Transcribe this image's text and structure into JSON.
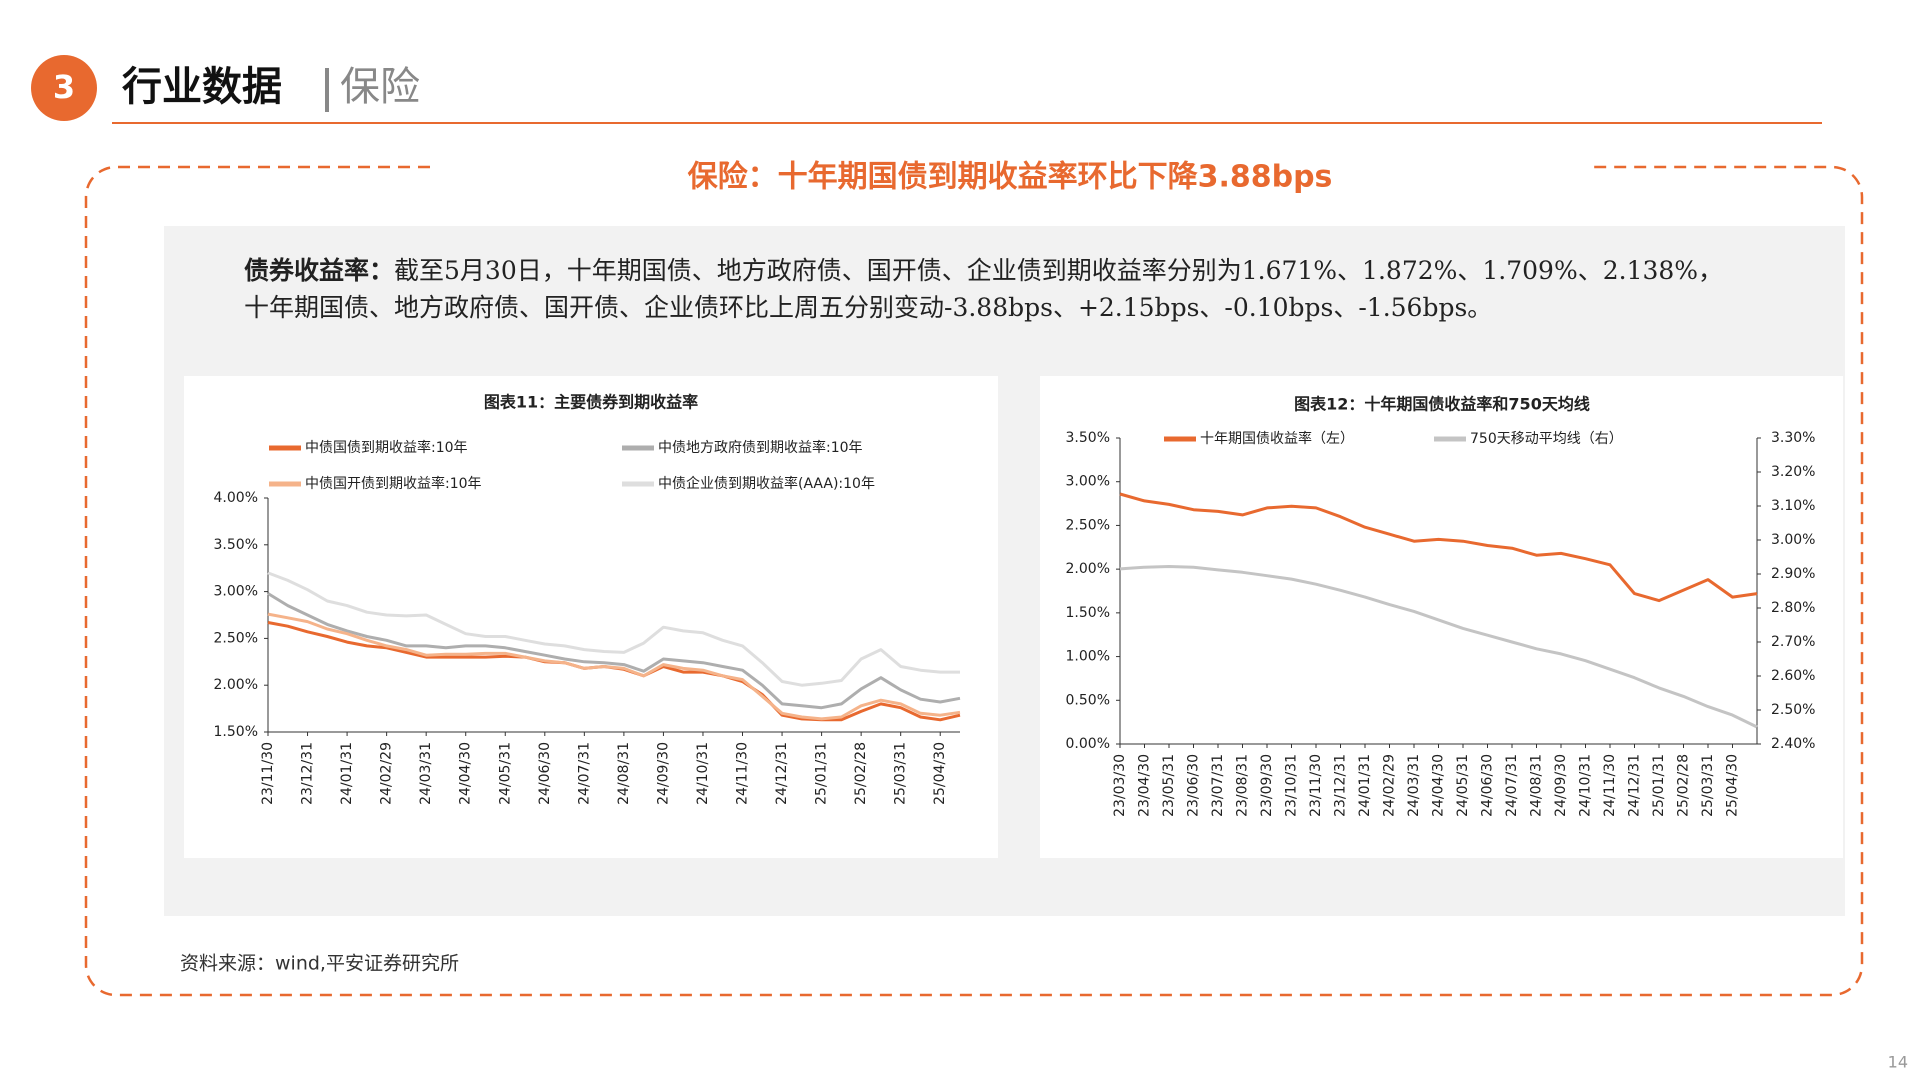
{
  "header": {
    "number": "3",
    "title": "行业数据",
    "subtitle": "保险"
  },
  "panel": {
    "title": "保险：十年期国债到期收益率环比下降3.88bps",
    "label": "债券收益率：",
    "lines": [
      "截至5月30日，十年期国债、地方政府债、国开债、企业债到期收益率分别为1.671%、1.872%、1.709%、2.138%，",
      "十年期国债、地方政府债、国开债、企业债环比上周五分别变动-3.88bps、+2.15bps、-0.10bps、-1.56bps。"
    ]
  },
  "source": "资料来源：wind,平安证券研究所",
  "page_number": "14",
  "chart_data": [
    {
      "type": "line",
      "title": "图表11：主要债券到期收益率",
      "categories": [
        "23/11/30",
        null,
        "23/12/31",
        null,
        "24/01/31",
        null,
        "24/02/29",
        null,
        "24/03/31",
        null,
        "24/04/30",
        null,
        "24/05/31",
        null,
        "24/06/30",
        null,
        "24/07/31",
        null,
        "24/08/31",
        null,
        "24/09/30",
        null,
        "24/10/31",
        null,
        "24/11/30",
        null,
        "24/12/31",
        null,
        "25/01/31",
        null,
        "25/02/28",
        null,
        "25/03/31",
        null,
        "25/04/30",
        null
      ],
      "ylim": [
        1.5,
        4.0
      ],
      "yticks": [
        {
          "value": 1.5,
          "label": "1.50%"
        },
        {
          "value": 2.0,
          "label": "2.00%"
        },
        {
          "value": 2.5,
          "label": "2.50%"
        },
        {
          "value": 3.0,
          "label": "3.00%"
        },
        {
          "value": 3.5,
          "label": "3.50%"
        },
        {
          "value": 4.0,
          "label": "4.00%"
        }
      ],
      "grid": false,
      "series": [
        {
          "name": "中债国债到期收益率:10年",
          "color": "#E8692F",
          "values": [
            2.67,
            2.63,
            2.57,
            2.52,
            2.46,
            2.42,
            2.4,
            2.35,
            2.3,
            2.3,
            2.3,
            2.3,
            2.31,
            2.3,
            2.25,
            2.24,
            2.18,
            2.2,
            2.17,
            2.1,
            2.2,
            2.14,
            2.14,
            2.1,
            2.04,
            1.9,
            1.68,
            1.64,
            1.63,
            1.63,
            1.72,
            1.8,
            1.76,
            1.66,
            1.63,
            1.68
          ]
        },
        {
          "name": "中债地方政府债到期收益率:10年",
          "color": "#AEAEAE",
          "values": [
            2.98,
            2.85,
            2.75,
            2.65,
            2.58,
            2.52,
            2.48,
            2.42,
            2.42,
            2.4,
            2.42,
            2.42,
            2.4,
            2.36,
            2.32,
            2.28,
            2.25,
            2.24,
            2.22,
            2.15,
            2.28,
            2.26,
            2.24,
            2.2,
            2.16,
            2.0,
            1.8,
            1.78,
            1.76,
            1.8,
            1.96,
            2.08,
            1.95,
            1.85,
            1.82,
            1.86
          ]
        },
        {
          "name": "中债国开债到期收益率:10年",
          "color": "#F5B38A",
          "values": [
            2.76,
            2.72,
            2.68,
            2.6,
            2.55,
            2.48,
            2.42,
            2.38,
            2.32,
            2.33,
            2.33,
            2.34,
            2.34,
            2.3,
            2.26,
            2.24,
            2.18,
            2.2,
            2.18,
            2.1,
            2.22,
            2.18,
            2.16,
            2.1,
            2.06,
            1.88,
            1.7,
            1.66,
            1.64,
            1.66,
            1.78,
            1.84,
            1.8,
            1.7,
            1.68,
            1.71
          ]
        },
        {
          "name": "中债企业债到期收益率(AAA):10年",
          "color": "#DEDEDE",
          "values": [
            3.2,
            3.12,
            3.02,
            2.9,
            2.85,
            2.78,
            2.75,
            2.74,
            2.75,
            2.65,
            2.55,
            2.52,
            2.52,
            2.48,
            2.44,
            2.42,
            2.38,
            2.36,
            2.35,
            2.45,
            2.62,
            2.58,
            2.56,
            2.48,
            2.42,
            2.24,
            2.04,
            2.0,
            2.02,
            2.05,
            2.28,
            2.38,
            2.2,
            2.16,
            2.14,
            2.14
          ]
        }
      ]
    },
    {
      "type": "line",
      "title": "图表12：十年期国债收益率和750天均线",
      "categories": [
        "23/03/30",
        "23/04/30",
        "23/05/31",
        "23/06/30",
        "23/07/31",
        "23/08/31",
        "23/09/30",
        "23/10/31",
        "23/11/30",
        "23/12/31",
        "24/01/31",
        "24/02/29",
        "24/03/31",
        "24/04/30",
        "24/05/31",
        "24/06/30",
        "24/07/31",
        "24/08/31",
        "24/09/30",
        "24/10/31",
        "24/11/30",
        "24/12/31",
        "25/01/31",
        "25/02/28",
        "25/03/31",
        "25/04/30",
        null
      ],
      "ylim": [
        0,
        3.5
      ],
      "yticks": [
        {
          "value": 0,
          "label": "0.00%"
        },
        {
          "value": 0.5,
          "label": "0.50%"
        },
        {
          "value": 1.0,
          "label": "1.00%"
        },
        {
          "value": 1.5,
          "label": "1.50%"
        },
        {
          "value": 2.0,
          "label": "2.00%"
        },
        {
          "value": 2.5,
          "label": "2.50%"
        },
        {
          "value": 3.0,
          "label": "3.00%"
        },
        {
          "value": 3.5,
          "label": "3.50%"
        }
      ],
      "y2lim": [
        2.4,
        3.3
      ],
      "y2ticks": [
        {
          "value": 2.4,
          "label": "2.40%"
        },
        {
          "value": 2.5,
          "label": "2.50%"
        },
        {
          "value": 2.6,
          "label": "2.60%"
        },
        {
          "value": 2.7,
          "label": "2.70%"
        },
        {
          "value": 2.8,
          "label": "2.80%"
        },
        {
          "value": 2.9,
          "label": "2.90%"
        },
        {
          "value": 3.0,
          "label": "3.00%"
        },
        {
          "value": 3.1,
          "label": "3.10%"
        },
        {
          "value": 3.2,
          "label": "3.20%"
        },
        {
          "value": 3.3,
          "label": "3.30%"
        }
      ],
      "grid": false,
      "series": [
        {
          "name": "十年期国债收益率（左）",
          "color": "#E8692F",
          "values": [
            2.86,
            2.78,
            2.74,
            2.68,
            2.66,
            2.62,
            2.7,
            2.72,
            2.7,
            2.6,
            2.48,
            2.4,
            2.32,
            2.34,
            2.32,
            2.27,
            2.24,
            2.16,
            2.18,
            2.12,
            2.05,
            1.72,
            1.64,
            1.76,
            1.88,
            1.68,
            1.72
          ]
        },
        {
          "name": "750天移动平均线（右）",
          "color": "#C4C4C4",
          "axis": "y2",
          "values": [
            2.915,
            2.92,
            2.922,
            2.92,
            2.912,
            2.905,
            2.895,
            2.885,
            2.87,
            2.852,
            2.832,
            2.81,
            2.79,
            2.765,
            2.74,
            2.72,
            2.7,
            2.68,
            2.665,
            2.645,
            2.62,
            2.595,
            2.565,
            2.54,
            2.51,
            2.485,
            2.45
          ]
        }
      ]
    }
  ]
}
